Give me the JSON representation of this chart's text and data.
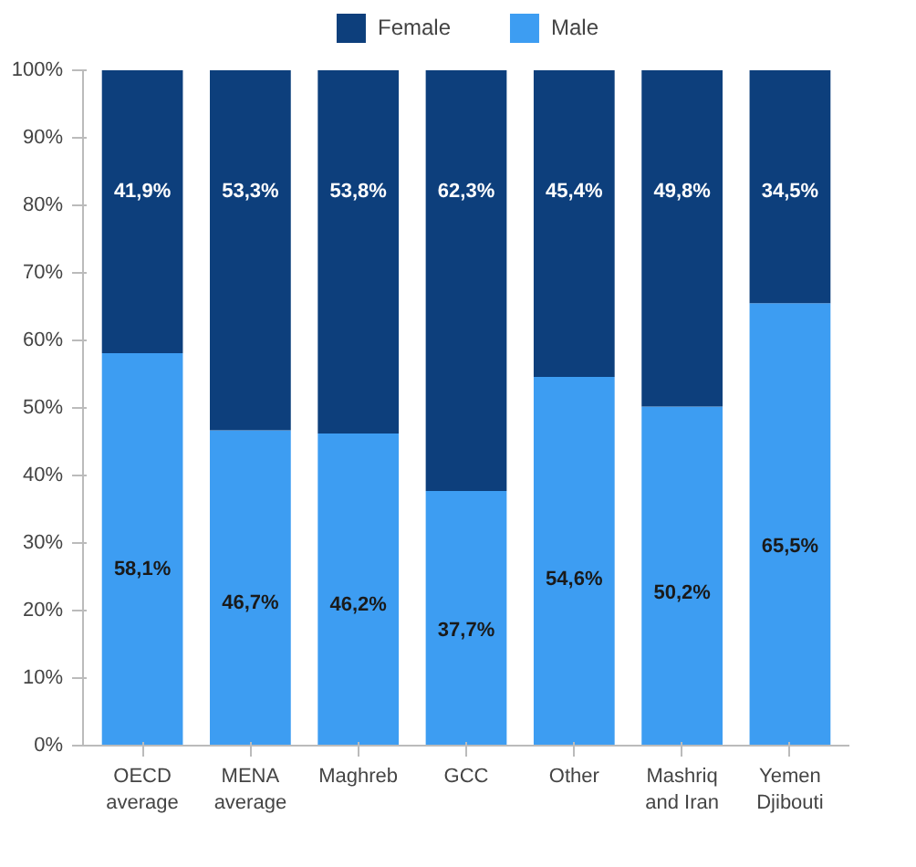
{
  "chart_data": {
    "type": "bar",
    "stacked": true,
    "categories": [
      "OECD\naverage",
      "MENA\naverage",
      "Maghreb",
      "GCC",
      "Other",
      "Mashriq\nand Iran",
      "Yemen\nDjibouti"
    ],
    "series": [
      {
        "name": "Male",
        "color": "#3d9df2",
        "values": [
          58.1,
          46.7,
          46.2,
          37.7,
          54.6,
          50.2,
          65.5
        ],
        "value_labels": [
          "58,1%",
          "46,7%",
          "46,2%",
          "37,7%",
          "54,6%",
          "50,2%",
          "65,5%"
        ]
      },
      {
        "name": "Female",
        "color": "#0d3f7c",
        "values": [
          41.9,
          53.3,
          53.8,
          62.3,
          45.4,
          49.8,
          34.5
        ],
        "value_labels": [
          "41,9%",
          "53,3%",
          "53,8%",
          "62,3%",
          "45,4%",
          "49,8%",
          "34,5%"
        ]
      }
    ],
    "ylim": [
      0,
      100
    ],
    "yticks": [
      {
        "value": 0,
        "label": "0%"
      },
      {
        "value": 10,
        "label": "10%"
      },
      {
        "value": 20,
        "label": "20%"
      },
      {
        "value": 30,
        "label": "30%"
      },
      {
        "value": 40,
        "label": "40%"
      },
      {
        "value": 50,
        "label": "50%"
      },
      {
        "value": 60,
        "label": "60%"
      },
      {
        "value": 70,
        "label": "70%"
      },
      {
        "value": 80,
        "label": "80%"
      },
      {
        "value": 90,
        "label": "90%"
      },
      {
        "value": 100,
        "label": "100%"
      }
    ],
    "grid": false,
    "legend": "top"
  }
}
